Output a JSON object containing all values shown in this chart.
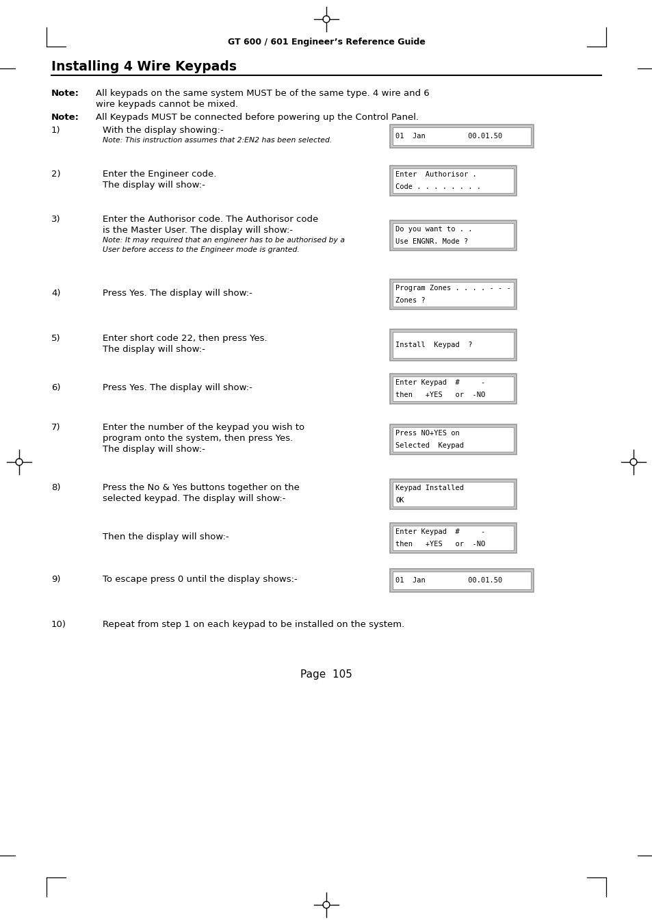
{
  "page_title": "GT 600 / 601 Engineer’s Reference Guide",
  "section_title": "Installing 4 Wire Keypads",
  "bg_color": "#ffffff",
  "page_num": "Page  105",
  "box_gray": "#c8c8c8",
  "box_white": "#ffffff",
  "note1_line1": "All keypads on the same system MUST be of the same type. 4 wire and 6",
  "note1_line2": "wire keypads cannot be mixed.",
  "note2_line1": "All Keypads MUST be connected before powering up the Control Panel.",
  "steps": [
    {
      "num": "1)",
      "main": [
        "With the display showing:-"
      ],
      "italic": [
        "Note: This instruction assumes that 2:EN2 has been selected."
      ],
      "box": [
        "01  Jan          00.01.50"
      ],
      "box_type": "wide_single"
    },
    {
      "num": "2)",
      "main": [
        "Enter the Engineer code.",
        "The display will show:-"
      ],
      "italic": [],
      "box": [
        "Enter  Authorisor .",
        "Code . . . . . . . ."
      ],
      "box_type": "normal_double"
    },
    {
      "num": "3)",
      "main": [
        "Enter the Authorisor code. The Authorisor code",
        "is the Master User. The display will show:-"
      ],
      "italic": [
        "Note: It may required that an engineer has to be authorised by a",
        "User before access to the Engineer mode is granted."
      ],
      "box": [
        "Do you want to . .",
        "Use ENGNR. Mode ?"
      ],
      "box_type": "normal_double"
    },
    {
      "num": "4)",
      "main": [
        "Press Yes. The display will show:-"
      ],
      "italic": [],
      "box": [
        "Program Zones . . . . - - -",
        "Zones ?"
      ],
      "box_type": "normal_double"
    },
    {
      "num": "5)",
      "main": [
        "Enter short code 22, then press Yes.",
        "The display will show:-"
      ],
      "italic": [],
      "box": [
        "Install  Keypad  ?"
      ],
      "box_type": "normal_single_tall"
    },
    {
      "num": "6)",
      "main": [
        "Press Yes. The display will show:-"
      ],
      "italic": [],
      "box": [
        "Enter Keypad  #     -",
        "then   +YES   or  -NO"
      ],
      "box_type": "normal_double"
    },
    {
      "num": "7)",
      "main": [
        "Enter the number of the keypad you wish to",
        "program onto the system, then press Yes.",
        "The display will show:-"
      ],
      "italic": [],
      "box": [
        "Press NO+YES on",
        "Selected  Keypad"
      ],
      "box_type": "normal_double"
    },
    {
      "num": "8)",
      "main": [
        "Press the No & Yes buttons together on the",
        "selected keypad. The display will show:-"
      ],
      "italic": [],
      "box": [
        "Keypad Installed",
        "OK"
      ],
      "box_type": "normal_double"
    },
    {
      "num": "",
      "main": [
        "Then the display will show:-"
      ],
      "italic": [],
      "box": [
        "Enter Keypad  #     -",
        "then   +YES   or  -NO"
      ],
      "box_type": "normal_double"
    },
    {
      "num": "9)",
      "main": [
        "To escape press 0 until the display shows:-"
      ],
      "italic": [],
      "box": [
        "01  Jan          00.01.50"
      ],
      "box_type": "wide_single"
    },
    {
      "num": "10)",
      "main": [
        "Repeat from step 1 on each keypad to be installed on the system."
      ],
      "italic": [],
      "box": [],
      "box_type": "none"
    }
  ]
}
